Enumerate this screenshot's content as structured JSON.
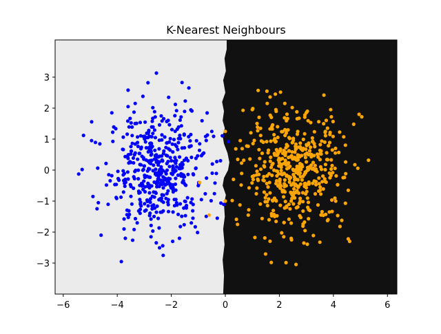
{
  "chart_data": {
    "type": "scatter",
    "title": "K-Nearest Neighbours",
    "xlabel": "",
    "ylabel": "",
    "xlim": [
      -6.3,
      6.35
    ],
    "ylim": [
      -4.0,
      4.2
    ],
    "x_ticks": [
      -6,
      -4,
      -2,
      0,
      2,
      4,
      6
    ],
    "y_ticks": [
      -3,
      -2,
      -1,
      0,
      1,
      2,
      3
    ],
    "x_tick_labels": [
      "−6",
      "−4",
      "−2",
      "0",
      "2",
      "4",
      "6"
    ],
    "y_tick_labels": [
      "−3",
      "−2",
      "−1",
      "0",
      "1",
      "2",
      "3"
    ],
    "grid": false,
    "legend": "none",
    "background": {
      "left_region_color": "#ebebeb",
      "right_region_color": "#111111",
      "decision_boundary": [
        [
          0.05,
          4.2
        ],
        [
          0.05,
          3.9
        ],
        [
          -0.03,
          3.6
        ],
        [
          0.02,
          3.2
        ],
        [
          -0.08,
          2.9
        ],
        [
          0.0,
          2.5
        ],
        [
          -0.12,
          2.2
        ],
        [
          -0.05,
          1.9
        ],
        [
          -0.1,
          1.6
        ],
        [
          -0.02,
          1.35
        ],
        [
          -0.1,
          1.1
        ],
        [
          -0.05,
          0.85
        ],
        [
          0.08,
          0.55
        ],
        [
          0.15,
          0.25
        ],
        [
          0.1,
          0.0
        ],
        [
          -0.05,
          -0.25
        ],
        [
          -0.1,
          -0.5
        ],
        [
          0.02,
          -0.8
        ],
        [
          -0.05,
          -1.1
        ],
        [
          -0.02,
          -1.5
        ],
        [
          -0.08,
          -1.9
        ],
        [
          -0.03,
          -2.4
        ],
        [
          -0.1,
          -2.9
        ],
        [
          -0.05,
          -3.4
        ],
        [
          -0.08,
          -4.0
        ]
      ]
    },
    "series": [
      {
        "color": "#0000ff",
        "center": [
          -2.5,
          0.0
        ],
        "spread": [
          0.9,
          0.95
        ],
        "count": 500,
        "points": [
          [
            -2.55,
            3.13
          ],
          [
            -1.35,
            2.65
          ],
          [
            -3.05,
            2.38
          ],
          [
            -3.6,
            2.05
          ],
          [
            -2.1,
            2.35
          ],
          [
            -5.3,
            0.02
          ],
          [
            -4.6,
            -2.1
          ],
          [
            -3.85,
            -2.95
          ],
          [
            -2.3,
            -2.75
          ],
          [
            -1.95,
            -2.3
          ],
          [
            -4.9,
            -0.85
          ],
          [
            -4.95,
            0.95
          ],
          [
            -4.2,
            1.85
          ],
          [
            -5.25,
            1.12
          ],
          [
            -0.5,
            1.25
          ],
          [
            -0.3,
            -1.55
          ],
          [
            -0.8,
            0.55
          ],
          [
            -1.0,
            -0.5
          ],
          [
            -1.85,
            2.12
          ],
          [
            -3.7,
            -2.2
          ],
          [
            -2.75,
            -2.15
          ],
          [
            -1.7,
            -2.2
          ],
          [
            -4.7,
            -1.05
          ],
          [
            -0.95,
            0.85
          ],
          [
            -1.2,
            -1.55
          ]
        ]
      },
      {
        "color": "#ffa500",
        "center": [
          2.55,
          0.0
        ],
        "spread": [
          0.9,
          0.9
        ],
        "count": 500,
        "points": [
          [
            1.85,
            2.45
          ],
          [
            3.65,
            2.42
          ],
          [
            1.7,
            -2.98
          ],
          [
            4.55,
            -2.22
          ],
          [
            4.6,
            -2.3
          ],
          [
            5.3,
            0.32
          ],
          [
            5.05,
            1.72
          ],
          [
            4.75,
            1.48
          ],
          [
            0.0,
            1.25
          ],
          [
            0.0,
            -1.0
          ],
          [
            -0.95,
            -0.4
          ],
          [
            -0.6,
            -1.45
          ],
          [
            0.45,
            -1.75
          ],
          [
            1.0,
            1.95
          ],
          [
            2.45,
            -2.25
          ],
          [
            2.95,
            -1.95
          ],
          [
            4.55,
            -0.65
          ],
          [
            0.3,
            -0.3
          ],
          [
            1.55,
            2.15
          ],
          [
            4.95,
            1.8
          ],
          [
            3.85,
            -1.35
          ],
          [
            0.55,
            0.95
          ],
          [
            2.2,
            2.15
          ],
          [
            3.9,
            1.95
          ],
          [
            0.85,
            -1.45
          ]
        ]
      }
    ]
  }
}
